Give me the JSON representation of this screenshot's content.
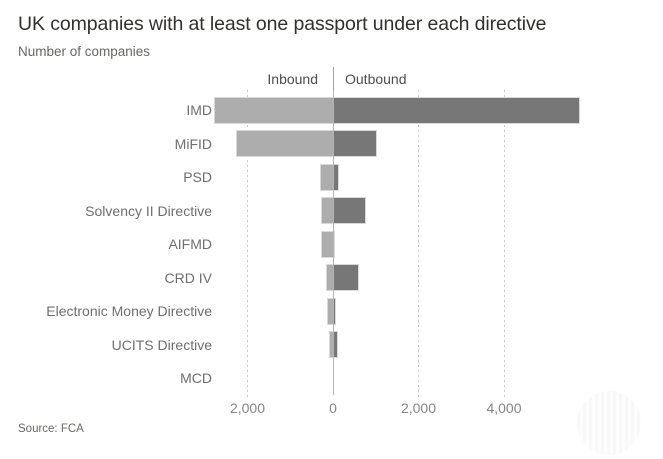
{
  "header": {
    "title": "UK companies with at least one passport under each directive",
    "subtitle": "Number of companies"
  },
  "legend": {
    "inbound": "Inbound",
    "outbound": "Outbound"
  },
  "source": "Source: FCA",
  "colors": {
    "inbound_bar": "#adadad",
    "outbound_bar": "#777777",
    "bar_outline": "#d9d9d9",
    "gridline": "#c8c8c8",
    "zero_line": "#b3b3b3",
    "title_text": "#33312e",
    "category_text": "#6e6e6e",
    "tick_text": "#858585"
  },
  "chart_data": {
    "type": "bar",
    "orientation": "horizontal",
    "diverging": true,
    "title": "UK companies with at least one passport under each directive",
    "ylabel_unit": "Number of companies",
    "legend_position": "top",
    "grid": "dotted vertical gridlines at each non-zero tick, solid line at zero",
    "categories": [
      "IMD",
      "MiFID",
      "PSD",
      "Solvency II Directive",
      "AIFMD",
      "CRD IV",
      "Electronic Money Directive",
      "UCITS Directive",
      "MCD"
    ],
    "series": [
      {
        "name": "Inbound",
        "side": "left",
        "color": "#adadad",
        "values": [
          2760,
          2250,
          280,
          250,
          250,
          140,
          120,
          80,
          0
        ]
      },
      {
        "name": "Outbound",
        "side": "right",
        "color": "#777777",
        "values": [
          5750,
          1000,
          110,
          740,
          30,
          590,
          50,
          90,
          0
        ]
      }
    ],
    "x_axis": {
      "ticks": [
        -2000,
        0,
        2000,
        4000
      ],
      "tick_labels": [
        "2,000",
        "0",
        "2,000",
        "4,000"
      ],
      "range": [
        -2800,
        7700
      ]
    },
    "source": "Source: FCA"
  }
}
